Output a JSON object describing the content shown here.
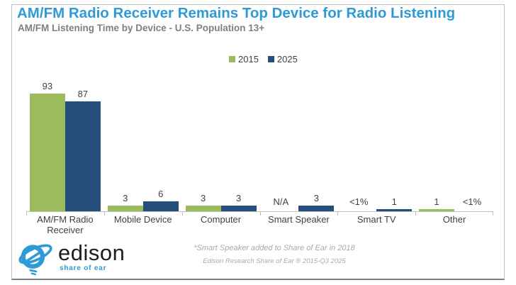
{
  "chart_data": {
    "type": "bar",
    "title": "AM/FM Radio Receiver Remains Top Device for Radio Listening",
    "subtitle": "AM/FM Listening Time by Device - U.S. Population 13+",
    "categories": [
      "AM/FM Radio Receiver",
      "Mobile Device",
      "Computer",
      "Smart Speaker",
      "Smart TV",
      "Other"
    ],
    "series": [
      {
        "name": "2015",
        "color": "#9cba5e",
        "values": [
          93,
          3,
          3,
          null,
          0.5,
          1
        ],
        "labels": [
          "93",
          "3",
          "3",
          "N/A",
          "<1%",
          "1"
        ]
      },
      {
        "name": "2025",
        "color": "#254e7b",
        "values": [
          87,
          6,
          3,
          3,
          1,
          0.5
        ],
        "labels": [
          "87",
          "6",
          "3",
          "3",
          "1",
          "<1%"
        ]
      }
    ],
    "xlabel": "",
    "ylabel": "",
    "ylim": [
      0,
      100
    ],
    "grid": false,
    "legend_position": "top-center",
    "annotations": [
      "*Smart Speaker added to Share of Ear in 2018",
      "Edison Research Share of Ear ® 2015-Q3 2025"
    ]
  },
  "footer": {
    "logo_name": "edison",
    "logo_tagline": "share of ear"
  },
  "colors": {
    "title_blue": "#2e9ad6",
    "subtitle_gray": "#7f7f7f",
    "axis_gray": "#bfbfbf",
    "label_gray": "#404040",
    "footnote_gray": "#a9a9a9",
    "series_2015_green": "#9cba5e",
    "series_2025_blue": "#254e7b"
  }
}
